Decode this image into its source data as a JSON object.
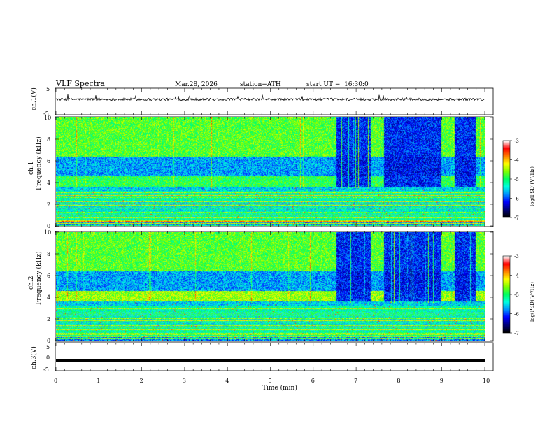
{
  "header": {
    "title": "VLF  Spectra",
    "date": "Mar.28, 2026",
    "station": "station=ATH",
    "start": "start  UT  =",
    "start_time": "16:30:0"
  },
  "colors": {
    "colormap": [
      "#000000",
      "#00007a",
      "#0000ff",
      "#0090ff",
      "#00ffe0",
      "#00ff60",
      "#80ff00",
      "#ffff00",
      "#ff8000",
      "#ff0000",
      "#ffffff"
    ],
    "trace": "#000000",
    "background": "#ffffff"
  },
  "chart_data": [
    {
      "id": "ch1_waveform",
      "type": "line",
      "ylabel": "ch.1(V)",
      "ylim": [
        -5,
        5
      ],
      "yticks": [
        "5",
        "-5"
      ],
      "xlim": [
        0,
        10
      ],
      "description": "noisy waveform near 0 V with spikes"
    },
    {
      "id": "ch1_spectrogram",
      "type": "heatmap",
      "ylabel_line1": "ch.1",
      "ylabel_line2": "Frequency  (kHz)",
      "ylim": [
        0,
        10
      ],
      "yticks": [
        "0",
        "2",
        "4",
        "6",
        "8",
        "10"
      ],
      "xlim": [
        0,
        10
      ],
      "colorbar": {
        "label": "log(PSD)(V²/Hz)",
        "range": [
          -7,
          -3
        ],
        "ticks": [
          "-3",
          "-4",
          "-5",
          "-6",
          "-7"
        ]
      },
      "dark_intervals_min": [
        [
          6.55,
          7.35
        ],
        [
          7.65,
          9.0
        ],
        [
          9.3,
          9.8
        ]
      ]
    },
    {
      "id": "ch2_spectrogram",
      "type": "heatmap",
      "ylabel_line1": "ch.2",
      "ylabel_line2": "Frequency  (kHz)",
      "ylim": [
        0,
        10
      ],
      "yticks": [
        "0",
        "2",
        "4",
        "6",
        "8",
        "10"
      ],
      "xlim": [
        0,
        10
      ],
      "colorbar": {
        "label": "log(PSD)(V²/Hz)",
        "range": [
          -7,
          -3
        ],
        "ticks": [
          "-3",
          "-4",
          "-5",
          "-6",
          "-7"
        ]
      },
      "dark_intervals_min": [
        [
          6.55,
          7.35
        ],
        [
          7.65,
          9.0
        ],
        [
          9.3,
          9.8
        ]
      ]
    },
    {
      "id": "ch3_waveform",
      "type": "line",
      "ylabel": "ch.3(V)",
      "ylim": [
        -5,
        5
      ],
      "yticks": [
        "5",
        "0",
        "-5"
      ],
      "xlim": [
        0,
        10
      ],
      "xlabel": "Time  (min)",
      "xticks": [
        "0",
        "1",
        "2",
        "3",
        "4",
        "5",
        "6",
        "7",
        "8",
        "9",
        "10"
      ],
      "level_v": -1.5
    }
  ]
}
